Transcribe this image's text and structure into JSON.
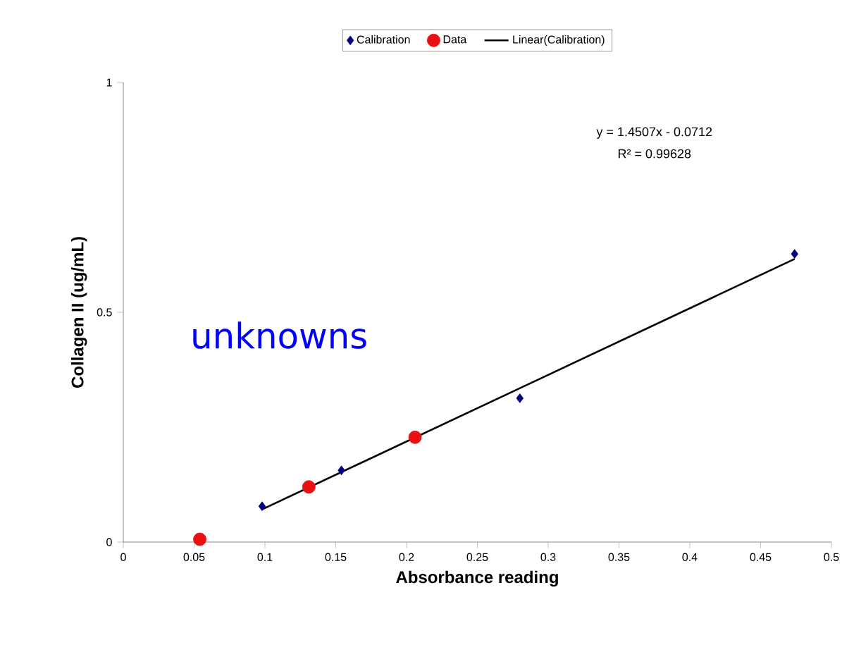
{
  "chart_data": {
    "type": "scatter",
    "xlabel": "Absorbance reading",
    "ylabel": "Collagen II (ug/mL)",
    "xlim": [
      0,
      0.5
    ],
    "ylim": [
      0,
      1
    ],
    "xticks": [
      0,
      0.05,
      0.1,
      0.15,
      0.2,
      0.25,
      0.3,
      0.35,
      0.4,
      0.45,
      0.5
    ],
    "yticks": [
      0,
      0.5,
      1
    ],
    "grid": false,
    "legend": "top",
    "series": [
      {
        "name": "Calibration",
        "marker": "diamond",
        "color": "#000080",
        "x": [
          0.098,
          0.154,
          0.28,
          0.474
        ],
        "values": [
          0.078,
          0.156,
          0.313,
          0.627
        ]
      },
      {
        "name": "Data",
        "marker": "circle",
        "color": "#e81010",
        "x": [
          0.054,
          0.131,
          0.206
        ],
        "values": [
          0.006,
          0.12,
          0.228
        ]
      },
      {
        "name": "Linear(Calibration)",
        "type": "line",
        "marker": "none",
        "color": "#000000",
        "x": [
          0.098,
          0.474
        ],
        "values": [
          0.071,
          0.616
        ]
      }
    ],
    "annotations": [
      "y = 1.4507x - 0.0712",
      "R² = 0.99628",
      "unknowns"
    ]
  }
}
